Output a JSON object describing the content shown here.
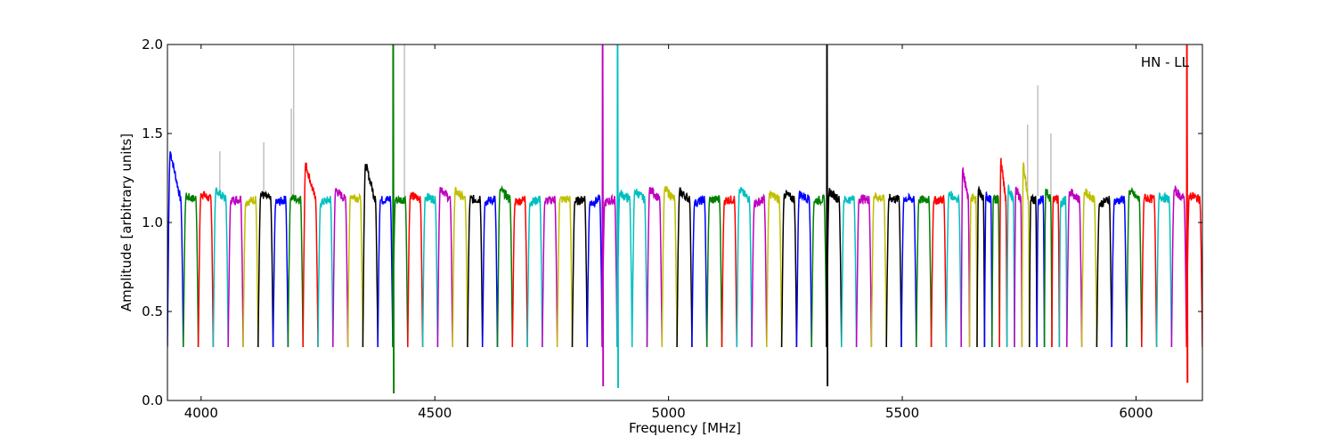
{
  "chart_data": {
    "type": "line",
    "annotation": "HN - LL",
    "xlabel": "Frequency [MHz]",
    "ylabel": "Amplitude [arbitrary units]",
    "xlim": [
      3928,
      6142
    ],
    "ylim": [
      0.0,
      2.0
    ],
    "x_ticks": [
      4000,
      4500,
      5000,
      5500,
      6000
    ],
    "y_ticks": [
      0.0,
      0.5,
      1.0,
      1.5,
      2.0
    ],
    "x_tick_labels": [
      "4000",
      "4500",
      "5000",
      "5500",
      "6000"
    ],
    "y_tick_labels": [
      "0.0",
      "0.5",
      "1.0",
      "1.5",
      "2.0"
    ],
    "grid": false,
    "color_cycle": [
      "#0000ff",
      "#008000",
      "#ff0000",
      "#00bfbf",
      "#bf00bf",
      "#bfbf00",
      "#000000"
    ],
    "background_trace_color": "#c0c0c0",
    "channel_width_mhz": 32,
    "baseline": 1.15,
    "edge_floor": 0.3,
    "channel_starts_mhz": [
      3928,
      3962,
      3994,
      4026,
      4058,
      4090,
      4122,
      4154,
      4186,
      4218,
      4250,
      4282,
      4314,
      4346,
      4378,
      4410,
      4442,
      4474,
      4506,
      4538,
      4570,
      4602,
      4634,
      4666,
      4698,
      4730,
      4762,
      4794,
      4826,
      4858,
      4890,
      4922,
      4954,
      4986,
      5018,
      5050,
      5082,
      5114,
      5146,
      5178,
      5210,
      5242,
      5274,
      5306,
      5338,
      5370,
      5402,
      5434,
      5466,
      5498,
      5530,
      5562,
      5594,
      5626,
      5644,
      5660,
      5676,
      5692,
      5708,
      5724,
      5740,
      5756,
      5772,
      5788,
      5804,
      5820,
      5836,
      5852,
      5884,
      5916,
      5948,
      5980,
      6012,
      6044,
      6076,
      6108
    ],
    "peak_channels": [
      {
        "start_mhz": 3928,
        "peak": 1.4
      },
      {
        "start_mhz": 4346,
        "peak": 1.33
      },
      {
        "start_mhz": 4218,
        "peak": 1.33
      },
      {
        "start_mhz": 5626,
        "peak": 1.3
      },
      {
        "start_mhz": 5708,
        "peak": 1.35
      },
      {
        "start_mhz": 5756,
        "peak": 1.33
      }
    ],
    "rfi_channels": [
      {
        "start_mhz": 4410,
        "color": "#008000",
        "max": 2.0,
        "min": 0.04
      },
      {
        "start_mhz": 4858,
        "color": "#bf00bf",
        "max": 2.0,
        "min": 0.08
      },
      {
        "start_mhz": 4890,
        "color": "#00bfbf",
        "max": 2.0,
        "min": 0.07
      },
      {
        "start_mhz": 5338,
        "color": "#000000",
        "max": 2.0,
        "min": 0.08
      },
      {
        "start_mhz": 6108,
        "color": "#ff0000",
        "max": 2.0,
        "min": 0.1
      }
    ],
    "gray_spikes": [
      {
        "x": 4198,
        "y": 2.0
      },
      {
        "x": 4193,
        "y": 1.64
      },
      {
        "x": 4134,
        "y": 1.45
      },
      {
        "x": 4040,
        "y": 1.4
      },
      {
        "x": 4435,
        "y": 2.0
      },
      {
        "x": 5790,
        "y": 1.77
      },
      {
        "x": 5768,
        "y": 1.55
      },
      {
        "x": 5818,
        "y": 1.5
      }
    ]
  }
}
